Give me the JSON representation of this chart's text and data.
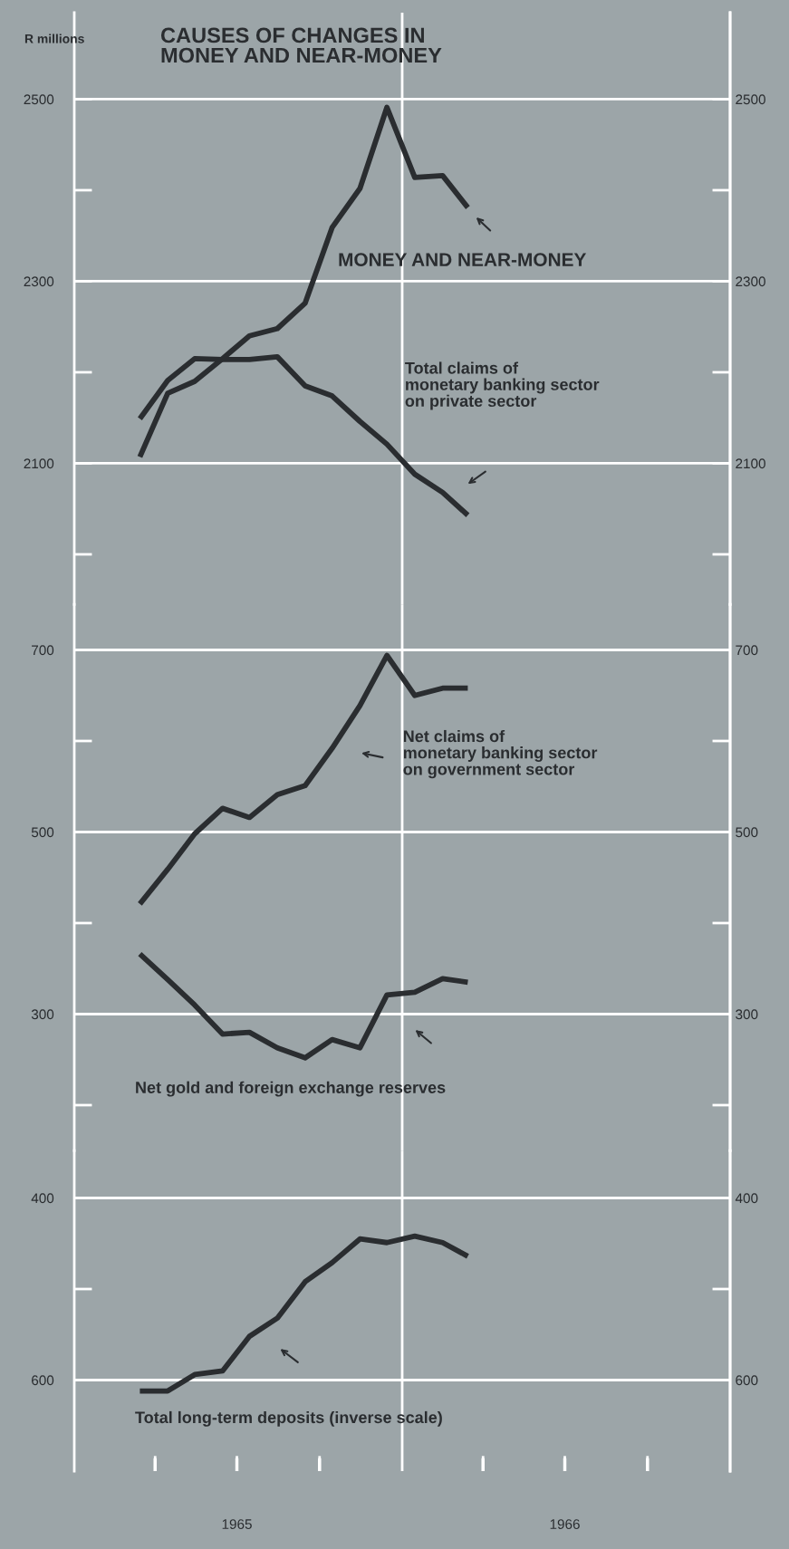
{
  "chart_data": [
    {
      "type": "line",
      "title": "CAUSES OF CHANGES IN\nMONEY AND NEAR-MONEY",
      "ylabel": "R millions",
      "tick_labels": "y",
      "grid": "y",
      "x": [
        "1965-03-15",
        "1965-04-15",
        "1965-05-15",
        "1965-06-15",
        "1965-07-15",
        "1965-08-15",
        "1965-09-15",
        "1965-10-15",
        "1965-11-15",
        "1965-12-15",
        "1966-01-15",
        "1966-02-15",
        "1966-03-15"
      ],
      "xlim": [
        "1965-01-01",
        "1967-01-01"
      ],
      "ylim": [
        1945,
        2595
      ],
      "yticks": [
        2100,
        2300,
        2500
      ],
      "y2lim": [
        1945,
        2595
      ],
      "y2ticks": [
        2100,
        2300,
        2500
      ],
      "ref_lines": [
        {
          "axis": "x",
          "value": "1966-01-01",
          "color": "#ffffff"
        }
      ],
      "series": [
        {
          "name": "MONEY AND NEAR-MONEY",
          "color": "#2a2d30",
          "values": [
            2107,
            2177,
            2190,
            2215,
            2240,
            2248,
            2276,
            2359,
            2402,
            2491,
            2414,
            2416,
            2381
          ]
        },
        {
          "name": "Total claims of\nmonetary banking sector\non private sector",
          "color": "#2a2d30",
          "values": [
            2149,
            2191,
            2215,
            2214,
            2214,
            2217,
            2185,
            2174,
            2146,
            2121,
            2088,
            2068,
            2043
          ]
        }
      ]
    },
    {
      "type": "line",
      "tick_labels": "y",
      "grid": "y",
      "x": [
        "1965-03-15",
        "1965-04-15",
        "1965-05-15",
        "1965-06-15",
        "1965-07-15",
        "1965-08-15",
        "1965-09-15",
        "1965-10-15",
        "1965-11-15",
        "1965-12-15",
        "1966-01-15",
        "1966-02-15",
        "1966-03-15"
      ],
      "xlim": [
        "1965-01-01",
        "1967-01-01"
      ],
      "ylim": [
        150,
        750
      ],
      "yticks": [
        300,
        500,
        700
      ],
      "y2lim": [
        150,
        750
      ],
      "y2ticks": [
        300,
        500,
        700
      ],
      "ref_lines": [
        {
          "axis": "x",
          "value": "1966-01-01",
          "color": "#ffffff"
        }
      ],
      "series": [
        {
          "name": "Net claims of\nmonetary banking sector\non government sector",
          "color": "#2a2d30",
          "values": [
            421,
            459,
            498,
            526,
            516,
            541,
            551,
            592,
            639,
            694,
            650,
            658,
            658
          ]
        },
        {
          "name": "Net gold and foreign exchange reserves",
          "color": "#2a2d30",
          "values": [
            366,
            338,
            310,
            278,
            280,
            263,
            252,
            272,
            263,
            321,
            324,
            339,
            335
          ]
        }
      ]
    },
    {
      "type": "line",
      "grid": "y",
      "x": [
        "1965-03-15",
        "1965-04-15",
        "1965-05-15",
        "1965-06-15",
        "1965-07-15",
        "1965-08-15",
        "1965-09-15",
        "1965-10-15",
        "1965-11-15",
        "1965-12-15",
        "1966-01-15",
        "1966-02-15",
        "1966-03-15"
      ],
      "xlim": [
        "1965-01-01",
        "1967-01-01"
      ],
      "xticks": [
        {
          "value": "1965-04-01",
          "label": null
        },
        {
          "value": "1965-07-01",
          "label": "1965"
        },
        {
          "value": "1965-10-01",
          "label": null
        },
        {
          "value": "1966-04-01",
          "label": null
        },
        {
          "value": "1966-07-01",
          "label": "1966"
        },
        {
          "value": "1966-10-01",
          "label": null
        }
      ],
      "ylim": [
        700,
        348
      ],
      "yticks": [
        400,
        600
      ],
      "y2lim": [
        700,
        348
      ],
      "y2ticks": [
        400,
        600
      ],
      "ref_lines": [
        {
          "axis": "x",
          "value": "1966-01-01",
          "color": "#ffffff"
        }
      ],
      "series": [
        {
          "name": "Total long-term deposits (inverse scale)",
          "color": "#2a2d30",
          "values": [
            612,
            612,
            594,
            590,
            552,
            532,
            492,
            471,
            445,
            449,
            442,
            449,
            464
          ]
        }
      ]
    }
  ]
}
